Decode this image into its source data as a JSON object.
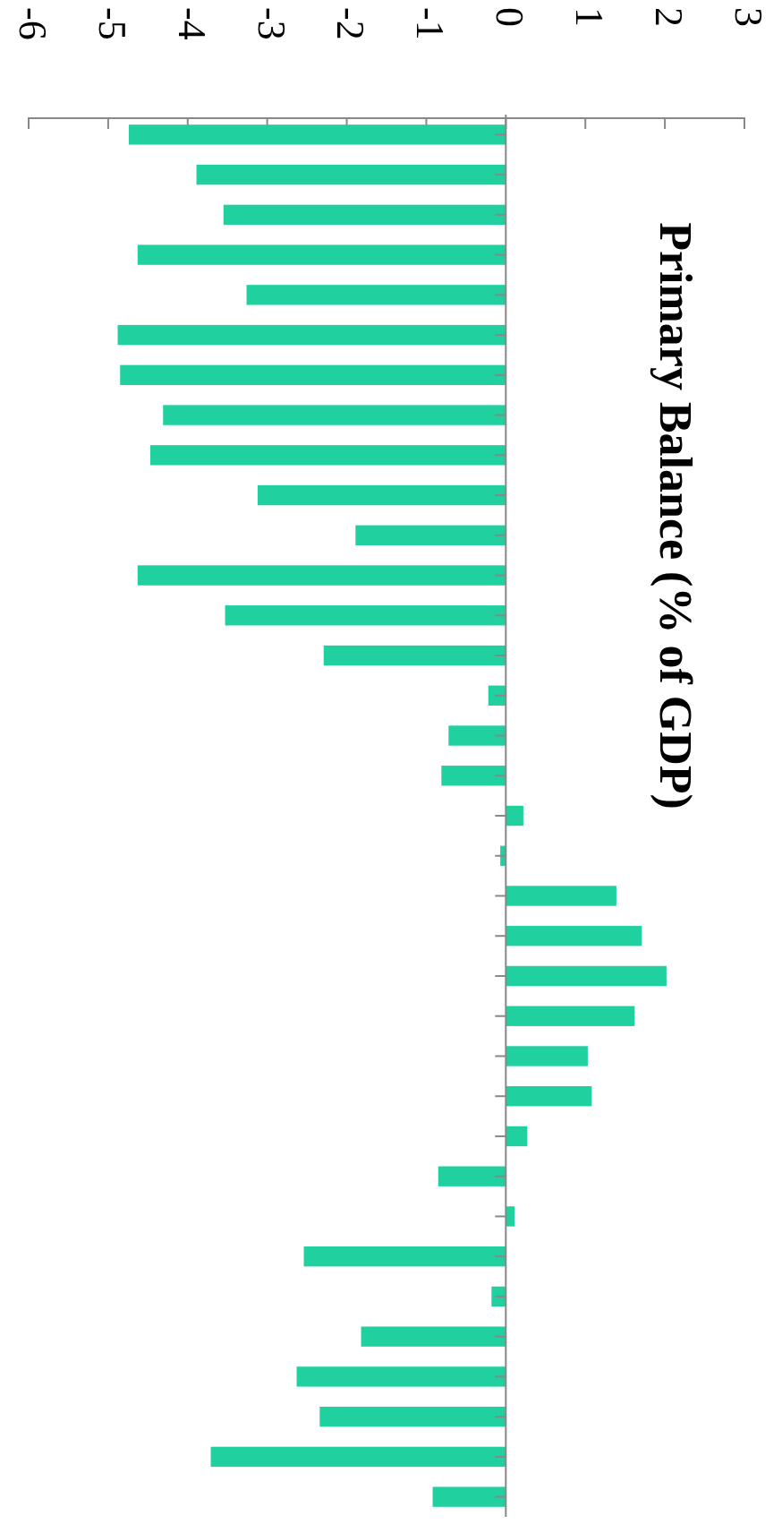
{
  "chart_data": {
    "type": "bar",
    "orientation": "horizontal",
    "title": "Primary Balance (% of GDP)",
    "categories": [
      null,
      null,
      null,
      null,
      null,
      null,
      null,
      null,
      null,
      null,
      null,
      null,
      null,
      null,
      null,
      null,
      null,
      null,
      null,
      null,
      null,
      null,
      null,
      null,
      null,
      null,
      null,
      null,
      null,
      null,
      null,
      null,
      null,
      null,
      null
    ],
    "values": [
      -4.74,
      -3.89,
      -3.55,
      -4.63,
      -3.26,
      -4.88,
      -4.85,
      -4.31,
      -4.47,
      -3.12,
      -1.89,
      -4.63,
      -3.53,
      -2.29,
      -0.22,
      -0.72,
      -0.81,
      0.22,
      -0.07,
      1.39,
      1.71,
      2.02,
      1.62,
      1.03,
      1.08,
      0.27,
      -0.85,
      0.11,
      -2.54,
      -0.18,
      -1.82,
      -2.63,
      -2.34,
      -3.71,
      -0.92
    ],
    "color": "#20d09f",
    "xlim": [
      -6,
      3
    ],
    "xticks": [
      -6,
      -5,
      -4,
      -3,
      -2,
      -1,
      0,
      1,
      2,
      3
    ]
  }
}
